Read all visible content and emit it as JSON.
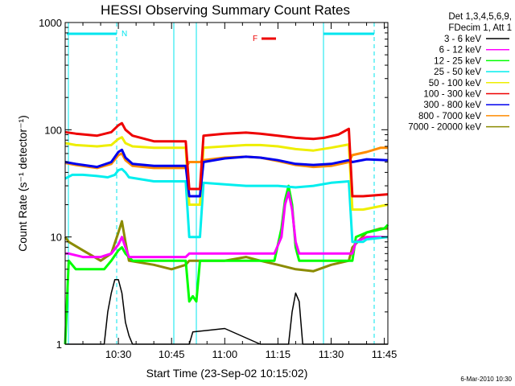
{
  "chart_data": {
    "type": "line",
    "title": "HESSI Observing Summary Count Rates",
    "xlabel": "Start Time (23-Sep-02 10:15:02)",
    "ylabel": "Count Rate (s⁻¹ detector⁻¹)",
    "yscale": "log",
    "ylim": [
      1,
      1000
    ],
    "xlim_minutes": [
      15,
      106
    ],
    "x_tick_labels": [
      {
        "min": 30,
        "label": "10:30"
      },
      {
        "min": 45,
        "label": "10:45"
      },
      {
        "min": 60,
        "label": "11:00"
      },
      {
        "min": 75,
        "label": "11:15"
      },
      {
        "min": 90,
        "label": "11:30"
      },
      {
        "min": 105,
        "label": "11:45"
      }
    ],
    "y_tick_labels": [
      {
        "v": 1,
        "label": "1"
      },
      {
        "v": 10,
        "label": "10"
      },
      {
        "v": 100,
        "label": "100"
      },
      {
        "v": 1000,
        "label": "1000"
      }
    ],
    "legend_header": [
      "Det 1,3,4,5,6,9,",
      "FDecim 1, Att 1"
    ],
    "legend_position": "right",
    "flags": [
      {
        "label": "N",
        "color": "#00e5ee"
      },
      {
        "label": "F",
        "color": "#ee0000"
      }
    ],
    "series": [
      {
        "name": "3 - 6 keV",
        "color": "#000000",
        "points": [
          [
            15,
            1
          ],
          [
            26,
            1
          ],
          [
            27,
            2
          ],
          [
            28,
            3
          ],
          [
            29,
            4
          ],
          [
            30,
            4
          ],
          [
            31,
            3
          ],
          [
            32,
            1.6
          ],
          [
            33,
            1.2
          ],
          [
            34,
            1
          ],
          [
            50,
            1
          ],
          [
            51,
            1.3
          ],
          [
            60,
            1.4
          ],
          [
            70,
            1
          ],
          [
            78,
            1
          ],
          [
            79,
            2
          ],
          [
            80,
            3
          ],
          [
            81,
            2.5
          ],
          [
            82,
            1
          ],
          [
            92,
            1
          ],
          [
            94,
            1
          ],
          [
            100,
            1
          ],
          [
            106,
            1
          ]
        ]
      },
      {
        "name": "6 - 12 keV",
        "color": "#ff00ff",
        "points": [
          [
            15,
            7
          ],
          [
            16,
            7
          ],
          [
            20,
            6.5
          ],
          [
            25,
            6.5
          ],
          [
            28,
            7
          ],
          [
            30,
            8.5
          ],
          [
            31,
            10
          ],
          [
            32,
            8
          ],
          [
            33,
            6.5
          ],
          [
            40,
            6.5
          ],
          [
            45,
            6.5
          ],
          [
            49,
            6.5
          ],
          [
            50,
            7
          ],
          [
            55,
            7
          ],
          [
            60,
            7
          ],
          [
            70,
            7
          ],
          [
            74,
            7
          ],
          [
            76,
            10
          ],
          [
            77,
            20
          ],
          [
            78,
            26
          ],
          [
            79,
            18
          ],
          [
            80,
            9
          ],
          [
            81,
            7
          ],
          [
            90,
            7
          ],
          [
            95,
            7
          ],
          [
            96,
            7
          ],
          [
            97,
            9
          ],
          [
            100,
            10
          ],
          [
            106,
            10
          ]
        ]
      },
      {
        "name": "12 - 25 keV",
        "color": "#00ff00",
        "points": [
          [
            15,
            1
          ],
          [
            16,
            6
          ],
          [
            18,
            5
          ],
          [
            22,
            5
          ],
          [
            26,
            5
          ],
          [
            28,
            6
          ],
          [
            30,
            7.5
          ],
          [
            31,
            8
          ],
          [
            32,
            7
          ],
          [
            34,
            6
          ],
          [
            40,
            6
          ],
          [
            45,
            6
          ],
          [
            49,
            6
          ],
          [
            50,
            2.5
          ],
          [
            51,
            2.8
          ],
          [
            52,
            2.5
          ],
          [
            53,
            6
          ],
          [
            60,
            6
          ],
          [
            68,
            6
          ],
          [
            74,
            6
          ],
          [
            76,
            12
          ],
          [
            77,
            22
          ],
          [
            78,
            30
          ],
          [
            79,
            20
          ],
          [
            80,
            8
          ],
          [
            81,
            6
          ],
          [
            90,
            6
          ],
          [
            95,
            6
          ],
          [
            96,
            6
          ],
          [
            97,
            10
          ],
          [
            100,
            11
          ],
          [
            105,
            12
          ],
          [
            106,
            13
          ]
        ]
      },
      {
        "name": "25 - 50 keV",
        "color": "#00eeee",
        "points": [
          [
            15,
            35
          ],
          [
            17,
            38
          ],
          [
            20,
            38
          ],
          [
            24,
            37
          ],
          [
            27,
            36
          ],
          [
            29,
            38
          ],
          [
            30,
            42
          ],
          [
            31,
            43
          ],
          [
            32,
            40
          ],
          [
            33,
            36
          ],
          [
            40,
            33
          ],
          [
            45,
            33
          ],
          [
            49,
            33
          ],
          [
            50,
            10
          ],
          [
            53,
            10
          ],
          [
            54,
            32
          ],
          [
            60,
            31
          ],
          [
            66,
            30
          ],
          [
            70,
            30
          ],
          [
            75,
            30
          ],
          [
            80,
            29
          ],
          [
            85,
            30
          ],
          [
            90,
            32
          ],
          [
            95,
            33
          ],
          [
            96,
            9
          ],
          [
            99,
            9
          ],
          [
            100,
            9.5
          ],
          [
            106,
            10
          ]
        ]
      },
      {
        "name": "50 - 100 keV",
        "color": "#eeee00",
        "points": [
          [
            15,
            75
          ],
          [
            18,
            72
          ],
          [
            24,
            70
          ],
          [
            28,
            72
          ],
          [
            30,
            82
          ],
          [
            31,
            85
          ],
          [
            32,
            75
          ],
          [
            34,
            70
          ],
          [
            40,
            68
          ],
          [
            45,
            68
          ],
          [
            49,
            68
          ],
          [
            50,
            20
          ],
          [
            53,
            20
          ],
          [
            54,
            68
          ],
          [
            60,
            70
          ],
          [
            66,
            72
          ],
          [
            70,
            72
          ],
          [
            75,
            70
          ],
          [
            80,
            66
          ],
          [
            85,
            64
          ],
          [
            90,
            68
          ],
          [
            95,
            73
          ],
          [
            96,
            18
          ],
          [
            99,
            18
          ],
          [
            106,
            20
          ]
        ]
      },
      {
        "name": "100 - 300 keV",
        "color": "#ee0000",
        "points": [
          [
            15,
            95
          ],
          [
            18,
            92
          ],
          [
            24,
            88
          ],
          [
            28,
            95
          ],
          [
            30,
            110
          ],
          [
            31,
            115
          ],
          [
            32,
            100
          ],
          [
            34,
            88
          ],
          [
            40,
            78
          ],
          [
            45,
            78
          ],
          [
            49,
            78
          ],
          [
            50,
            28
          ],
          [
            53,
            28
          ],
          [
            54,
            88
          ],
          [
            60,
            92
          ],
          [
            66,
            94
          ],
          [
            70,
            92
          ],
          [
            75,
            88
          ],
          [
            80,
            84
          ],
          [
            85,
            82
          ],
          [
            88,
            84
          ],
          [
            92,
            90
          ],
          [
            95,
            102
          ],
          [
            96,
            24
          ],
          [
            99,
            24
          ],
          [
            106,
            25
          ]
        ]
      },
      {
        "name": "300 - 800 keV",
        "color": "#0000ee",
        "points": [
          [
            15,
            50
          ],
          [
            18,
            48
          ],
          [
            24,
            45
          ],
          [
            28,
            50
          ],
          [
            30,
            62
          ],
          [
            31,
            65
          ],
          [
            32,
            55
          ],
          [
            34,
            48
          ],
          [
            40,
            46
          ],
          [
            45,
            46
          ],
          [
            49,
            46
          ],
          [
            50,
            24
          ],
          [
            53,
            24
          ],
          [
            54,
            50
          ],
          [
            60,
            54
          ],
          [
            66,
            56
          ],
          [
            70,
            55
          ],
          [
            75,
            52
          ],
          [
            80,
            48
          ],
          [
            85,
            47
          ],
          [
            90,
            48
          ],
          [
            95,
            52
          ],
          [
            96,
            50
          ],
          [
            100,
            53
          ],
          [
            106,
            52
          ]
        ]
      },
      {
        "name": "800 - 7000 keV",
        "color": "#ff8c00",
        "points": [
          [
            15,
            49
          ],
          [
            18,
            47
          ],
          [
            24,
            44
          ],
          [
            28,
            48
          ],
          [
            30,
            58
          ],
          [
            31,
            60
          ],
          [
            32,
            52
          ],
          [
            34,
            46
          ],
          [
            40,
            44
          ],
          [
            45,
            44
          ],
          [
            49,
            44
          ],
          [
            50,
            50
          ],
          [
            53,
            50
          ],
          [
            54,
            52
          ],
          [
            60,
            55
          ],
          [
            66,
            56
          ],
          [
            70,
            55
          ],
          [
            75,
            51
          ],
          [
            80,
            47
          ],
          [
            85,
            45
          ],
          [
            90,
            46
          ],
          [
            95,
            50
          ],
          [
            96,
            58
          ],
          [
            100,
            62
          ],
          [
            104,
            68
          ],
          [
            106,
            68
          ]
        ]
      },
      {
        "name": "7000 - 20000 keV",
        "color": "#8b8b00",
        "points": [
          [
            15,
            10
          ],
          [
            16,
            9
          ],
          [
            20,
            7.5
          ],
          [
            25,
            6
          ],
          [
            28,
            7
          ],
          [
            30,
            11
          ],
          [
            31,
            14
          ],
          [
            32,
            9
          ],
          [
            33,
            6
          ],
          [
            40,
            5.5
          ],
          [
            45,
            5
          ],
          [
            49,
            5.5
          ],
          [
            50,
            6
          ],
          [
            55,
            6
          ],
          [
            60,
            6
          ],
          [
            66,
            6.5
          ],
          [
            70,
            6
          ],
          [
            75,
            5.5
          ],
          [
            80,
            5
          ],
          [
            85,
            4.8
          ],
          [
            90,
            5.5
          ],
          [
            95,
            6
          ],
          [
            96,
            8
          ],
          [
            100,
            11
          ],
          [
            104,
            12
          ],
          [
            106,
            12
          ]
        ]
      }
    ]
  },
  "footer_stamp": "6-Mar-2010 10:30"
}
